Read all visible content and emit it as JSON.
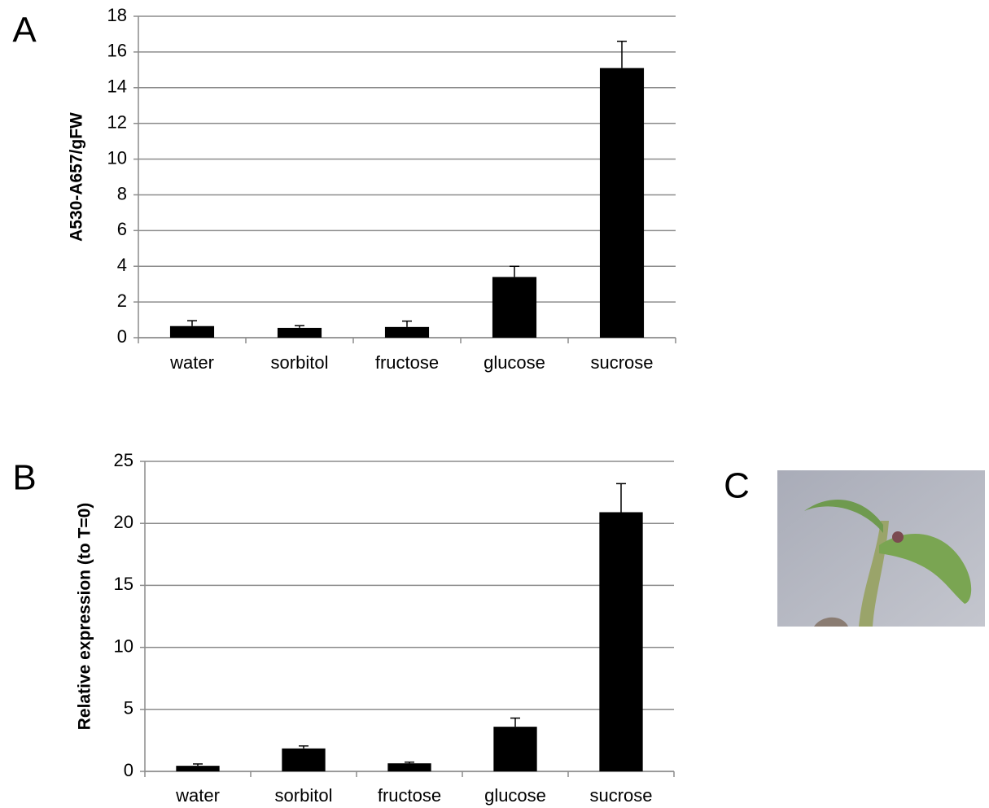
{
  "chart_data": [
    {
      "type": "bar",
      "panel_label": "A",
      "ylabel": "A530-A657/gFW",
      "categories": [
        "water",
        "sorbitol",
        "fructose",
        "glucose",
        "sucrose"
      ],
      "values": [
        0.65,
        0.55,
        0.6,
        3.4,
        15.1
      ],
      "errors": [
        0.3,
        0.12,
        0.33,
        0.6,
        1.5
      ],
      "color": "#000000",
      "ylim": [
        0,
        18
      ],
      "yticks": [
        0,
        2,
        4,
        6,
        8,
        10,
        12,
        14,
        16,
        18
      ],
      "grid": true
    },
    {
      "type": "bar",
      "panel_label": "B",
      "ylabel": "Relative expression (to T=0)",
      "categories": [
        "water",
        "sorbitol",
        "fructose",
        "glucose",
        "sucrose"
      ],
      "values": [
        0.45,
        1.85,
        0.65,
        3.6,
        20.9
      ],
      "errors": [
        0.15,
        0.2,
        0.1,
        0.7,
        2.3
      ],
      "color": "#000000",
      "ylim": [
        0,
        25
      ],
      "yticks": [
        0,
        5,
        10,
        15,
        20,
        25
      ],
      "grid": true
    }
  ],
  "photo": {
    "panel_label": "C"
  }
}
